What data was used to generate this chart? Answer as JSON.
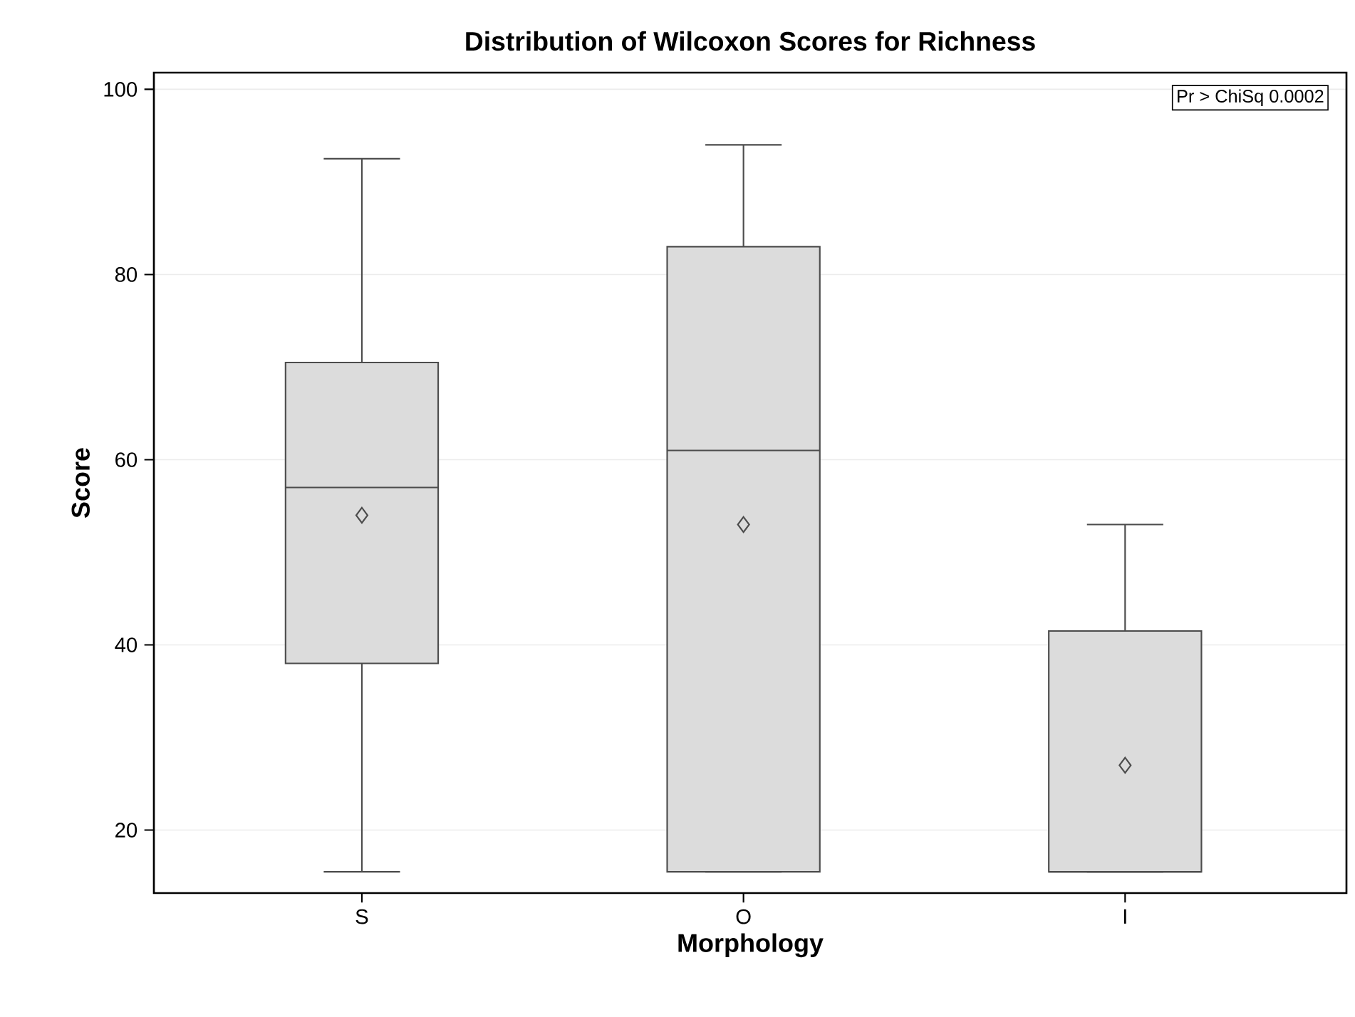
{
  "chart_data": {
    "type": "box",
    "title": "Distribution of Wilcoxon Scores for Richness",
    "xlabel": "Morphology",
    "ylabel": "Score",
    "categories": [
      "S",
      "O",
      "I"
    ],
    "series": [
      {
        "color": "#dcdcdc",
        "boxes": [
          {
            "low": 15.5,
            "q1": 38,
            "median": 57,
            "q3": 70.5,
            "high": 92.5,
            "mean": 54
          },
          {
            "low": 15.5,
            "q1": 15.5,
            "median": 61,
            "q3": 83,
            "high": 94,
            "mean": 53
          },
          {
            "low": 15.5,
            "q1": 15.5,
            "median": 15.5,
            "q3": 41.5,
            "high": 53,
            "mean": 27
          }
        ]
      }
    ],
    "ylim": [
      13.2,
      101.8
    ],
    "yticks": [
      20,
      40,
      60,
      80,
      100
    ],
    "grid": "y",
    "marker": "diamond",
    "annotations": [
      "Pr > ChiSq   0.0002"
    ]
  }
}
